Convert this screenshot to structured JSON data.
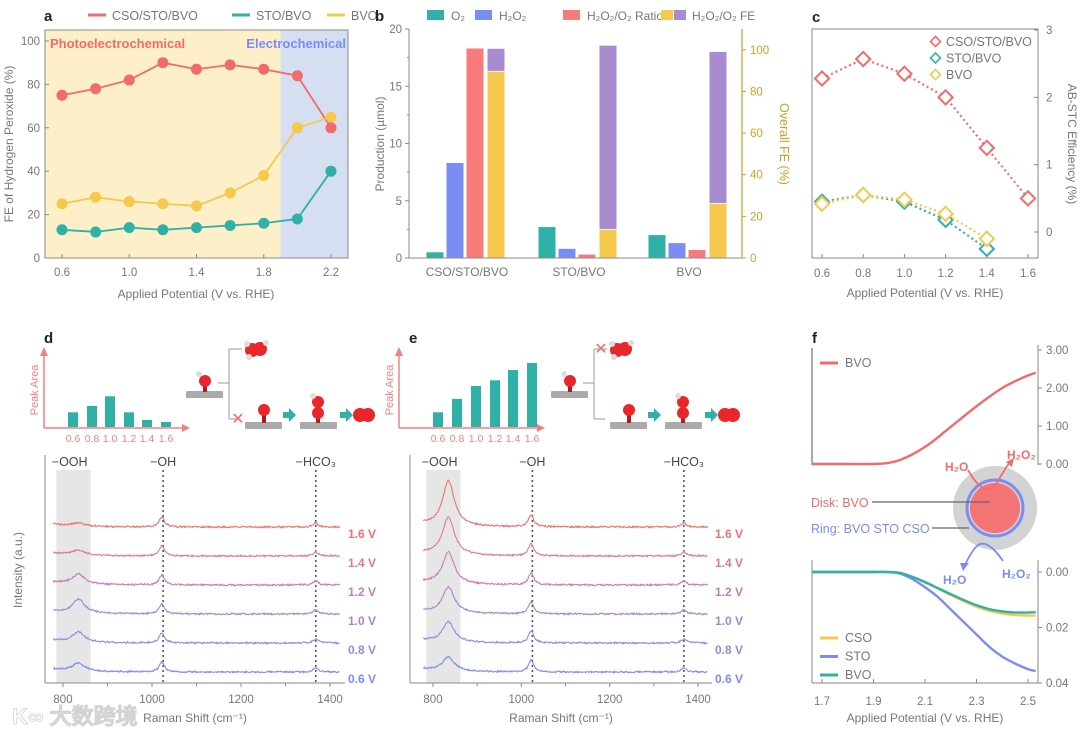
{
  "figure": {
    "watermark": "大数跨境"
  },
  "colors": {
    "cso": "#f26b6b",
    "sto": "#2fb1a8",
    "bvo": "#f5c94e",
    "blue": "#7b8cf5",
    "purple": "#a98bd0",
    "gold": "#c9a227",
    "axis": "#8a8a8a",
    "text": "#777777"
  },
  "chart_data": [
    {
      "panel": "a",
      "type": "line",
      "x": [
        0.6,
        0.8,
        1.0,
        1.2,
        1.4,
        1.6,
        1.8,
        2.0,
        2.2
      ],
      "series": [
        {
          "name": "CSO/STO/BVO",
          "color": "#f26b6b",
          "values": [
            75,
            78,
            82,
            90,
            87,
            89,
            87,
            84,
            60
          ]
        },
        {
          "name": "STO/BVO",
          "color": "#2fb1a8",
          "values": [
            13,
            12,
            14,
            13,
            14,
            15,
            16,
            18,
            40
          ]
        },
        {
          "name": "BVO",
          "color": "#f5c94e",
          "values": [
            25,
            28,
            26,
            25,
            24,
            30,
            38,
            60,
            65
          ]
        }
      ],
      "regions": [
        {
          "label": "Photoelectrochemical",
          "from": 0.5,
          "to": 1.9,
          "color": "#fdf0c8",
          "text_color": "#f26b6b"
        },
        {
          "label": "Electrochemical",
          "from": 1.9,
          "to": 2.3,
          "color": "#d6dff2",
          "text_color": "#7b8cf5"
        }
      ],
      "xlabel": "Applied Potential (V vs. RHE)",
      "ylabel": "FE of Hydrogen Peroxide (%)",
      "xlim": [
        0.5,
        2.3
      ],
      "ylim": [
        0,
        100
      ],
      "xticks": [
        "0.6",
        "1.0",
        "1.4",
        "1.8",
        "2.2"
      ],
      "yticks": [
        "0",
        "20",
        "40",
        "60",
        "80",
        "100"
      ],
      "legend": "top"
    },
    {
      "panel": "b",
      "type": "bar",
      "categories": [
        "CSO/STO/BVO",
        "STO/BVO",
        "BVO"
      ],
      "series": [
        {
          "name": "O₂",
          "axis": "left",
          "color": "#2fb1a8",
          "values": [
            0.5,
            2.7,
            2.0
          ]
        },
        {
          "name": "H₂O₂",
          "axis": "left",
          "color": "#7b8cf5",
          "values": [
            8.3,
            0.8,
            1.3
          ]
        },
        {
          "name": "H₂O₂/O₂ Ratio",
          "axis": "left",
          "color": "#f77b7b",
          "values": [
            18.3,
            0.3,
            0.7
          ]
        }
      ],
      "fe_stack": {
        "name": "H₂O₂/O₂ FE",
        "axis": "right",
        "h2o2_fe": [
          89.5,
          13.5,
          26
        ],
        "o2_fe": [
          11,
          88.5,
          73
        ],
        "h2o2_color": "#f5c94e",
        "o2_color": "#a98bd0"
      },
      "ylabel": "Production (µmol)",
      "y2label": "Overall FE (%)",
      "ylim": [
        0,
        20
      ],
      "y2lim": [
        0,
        110
      ],
      "yticks": [
        "0",
        "5",
        "10",
        "15",
        "20"
      ],
      "y2ticks": [
        "0",
        "20",
        "40",
        "60",
        "80",
        "100"
      ],
      "legend": "top"
    },
    {
      "panel": "c",
      "type": "scatter",
      "x": [
        0.6,
        0.8,
        1.0,
        1.2,
        1.4,
        1.6
      ],
      "series": [
        {
          "name": "CSO/STO/BVO",
          "color": "#f26b6b",
          "values": [
            2.28,
            2.57,
            2.35,
            2.0,
            1.25,
            0.5
          ]
        },
        {
          "name": "STO/BVO",
          "color": "#2fb1a8",
          "values": [
            0.45,
            0.55,
            0.45,
            0.18,
            -0.25
          ]
        },
        {
          "name": "BVO",
          "color": "#f5c94e",
          "values": [
            0.42,
            0.55,
            0.48,
            0.27,
            -0.1
          ]
        }
      ],
      "xlabel": "Applied Potential (V vs. RHE)",
      "y2label": "AB-STC Efficiency (%)",
      "xlim": [
        0.55,
        1.65
      ],
      "ylim": [
        -0.39,
        3
      ],
      "xticks": [
        "0.6",
        "0.8",
        "1.0",
        "1.2",
        "1.4",
        "1.6"
      ],
      "y2ticks": [
        "0",
        "1",
        "2",
        "3"
      ],
      "legend": "top-right"
    },
    {
      "panel": "d",
      "type": "line",
      "xlabel": "Raman Shift (cm⁻¹)",
      "ylabel": "Intensity (a.u.)",
      "xlim": [
        775,
        1425
      ],
      "xticks": [
        "800",
        "1000",
        "1200",
        "1400"
      ],
      "peak_labels": [
        "−OOH",
        "−OH",
        "−HCO₃"
      ],
      "peak_positions": [
        835,
        1022,
        1368
      ],
      "potentials": [
        "1.6 V",
        "1.4 V",
        "1.2 V",
        "1.0 V",
        "0.8 V",
        "0.6 V"
      ],
      "ooh_intensity": [
        3,
        5,
        10,
        14,
        10,
        8
      ],
      "oh_intensity": [
        10,
        10,
        10,
        10,
        10,
        10
      ],
      "inset": {
        "ylabel": "Peak Area",
        "categories": [
          "0.6",
          "0.8",
          "1.0",
          "1.2",
          "1.4",
          "1.6"
        ],
        "values": [
          0.23,
          0.33,
          0.48,
          0.23,
          0.11,
          0.08
        ]
      }
    },
    {
      "panel": "e",
      "type": "line",
      "xlabel": "Raman Shift (cm⁻¹)",
      "xlim": [
        775,
        1425
      ],
      "xticks": [
        "800",
        "1000",
        "1200",
        "1400"
      ],
      "peak_labels": [
        "−OOH",
        "−OH",
        "−HCO₃"
      ],
      "peak_positions": [
        835,
        1022,
        1368
      ],
      "potentials": [
        "1.6 V",
        "1.4 V",
        "1.2 V",
        "1.0 V",
        "0.8 V",
        "0.6 V"
      ],
      "ooh_intensity": [
        45,
        38,
        32,
        26,
        20,
        14
      ],
      "oh_intensity": [
        12,
        12,
        12,
        12,
        12,
        12
      ],
      "inset": {
        "ylabel": "Peak Area",
        "categories": [
          "0.6",
          "0.8",
          "1.0",
          "1.2",
          "1.4",
          "1.6"
        ],
        "values": [
          0.23,
          0.44,
          0.64,
          0.73,
          0.89,
          1.0
        ]
      }
    },
    {
      "panel": "f",
      "type": "line",
      "x": [
        1.66,
        1.7,
        1.8,
        1.9,
        1.95,
        2.0,
        2.05,
        2.1,
        2.15,
        2.2,
        2.25,
        2.3,
        2.35,
        2.4,
        2.45,
        2.5,
        2.53
      ],
      "top": {
        "ylim": [
          0,
          3
        ],
        "yticks": [
          "0.00",
          "1.00",
          "2.00",
          "3.00"
        ],
        "series": [
          {
            "name": "BVO",
            "color": "#f26b6b",
            "values": [
              0,
              0,
              0,
              0,
              0.02,
              0.1,
              0.25,
              0.45,
              0.7,
              0.98,
              1.25,
              1.52,
              1.77,
              2.0,
              2.18,
              2.33,
              2.4
            ]
          }
        ]
      },
      "bottom": {
        "ylim": [
          0,
          0.04
        ],
        "yticks": [
          "0.00",
          "0.02",
          "0.04"
        ],
        "series": [
          {
            "name": "CSO",
            "color": "#f5c94e",
            "values": [
              0,
              0,
              0,
              0,
              0,
              0.0003,
              0.0018,
              0.0038,
              0.006,
              0.0083,
              0.0105,
              0.0125,
              0.014,
              0.015,
              0.0155,
              0.0157,
              0.0157
            ]
          },
          {
            "name": "STO",
            "color": "#7b8cf5",
            "values": [
              0,
              0,
              0,
              0,
              0,
              0.0005,
              0.0025,
              0.0055,
              0.009,
              0.0135,
              0.018,
              0.0225,
              0.027,
              0.0305,
              0.033,
              0.035,
              0.0357
            ]
          },
          {
            "name": "BVO",
            "color": "#2fb1a8",
            "values": [
              0,
              0,
              0,
              0,
              0,
              0.0003,
              0.0017,
              0.0036,
              0.0058,
              0.008,
              0.0101,
              0.012,
              0.0134,
              0.0142,
              0.0146,
              0.0146,
              0.0145
            ]
          }
        ]
      },
      "xlabel": "Applied Potential (V vs. RHE)",
      "xlim": [
        1.66,
        2.54
      ],
      "xticks": [
        "1.7",
        "1.9",
        "2.1",
        "2.3",
        "2.5"
      ],
      "annotations": {
        "disk": "Disk: BVO",
        "ring": "Ring: BVO STO CSO",
        "h2o_top": "H₂O",
        "h2o2_top": "H₂O₂",
        "h2o2_bottom": "H₂O₂",
        "h2o_bottom": "H₂O"
      }
    }
  ]
}
